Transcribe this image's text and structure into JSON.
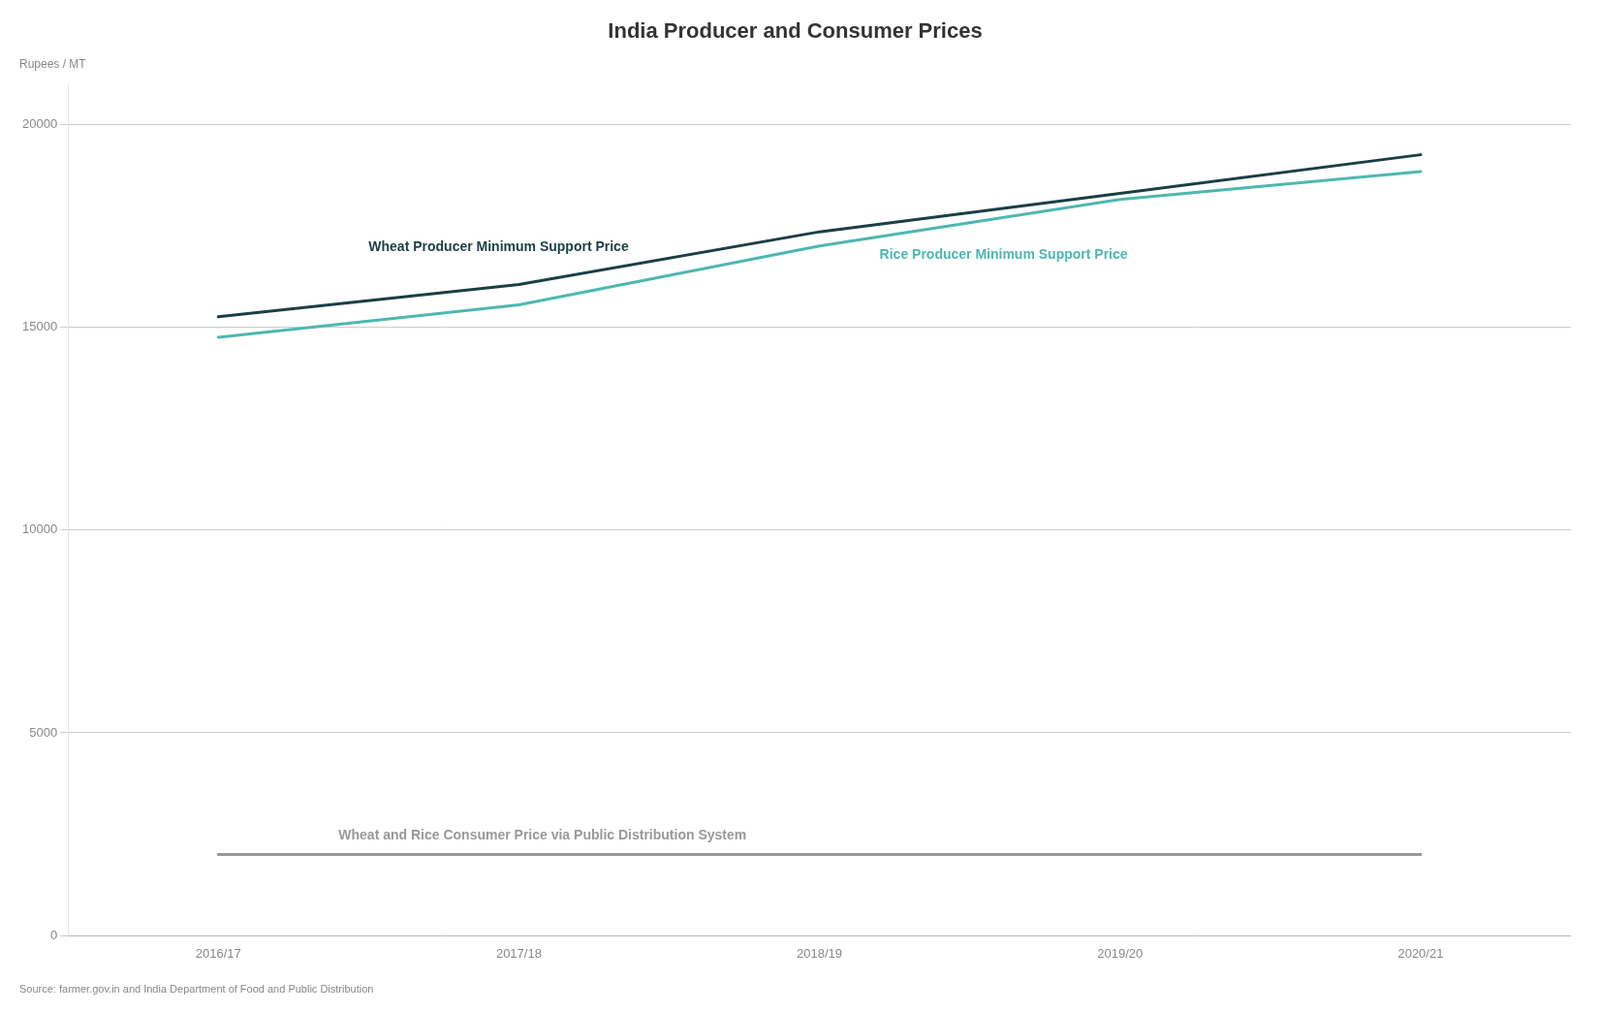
{
  "chart_data": {
    "type": "line",
    "title": "India Producer and Consumer Prices",
    "ylabel": "Rupees / MT",
    "source": "Source: farmer.gov.in and India Department of Food and Public Distribution",
    "categories": [
      "2016/17",
      "2017/18",
      "2018/19",
      "2019/20",
      "2020/21"
    ],
    "series": [
      {
        "name": "Wheat Producer Minimum Support Price",
        "color": "#1a3f45",
        "values": [
          15255,
          16050,
          17350,
          18295,
          19250
        ]
      },
      {
        "name": "Rice Producer Minimum Support Price",
        "color": "#4db8b0",
        "values": [
          14750,
          15550,
          17000,
          18150,
          18835
        ]
      },
      {
        "name": "Wheat and Rice Consumer Price via Public Distribution System",
        "color": "#999999",
        "values": [
          2000,
          2000,
          2000,
          2000,
          2000
        ]
      }
    ],
    "ylim": [
      0,
      21000
    ],
    "yticks": [
      0,
      5000,
      10000,
      15000,
      20000
    ],
    "grid": true
  }
}
